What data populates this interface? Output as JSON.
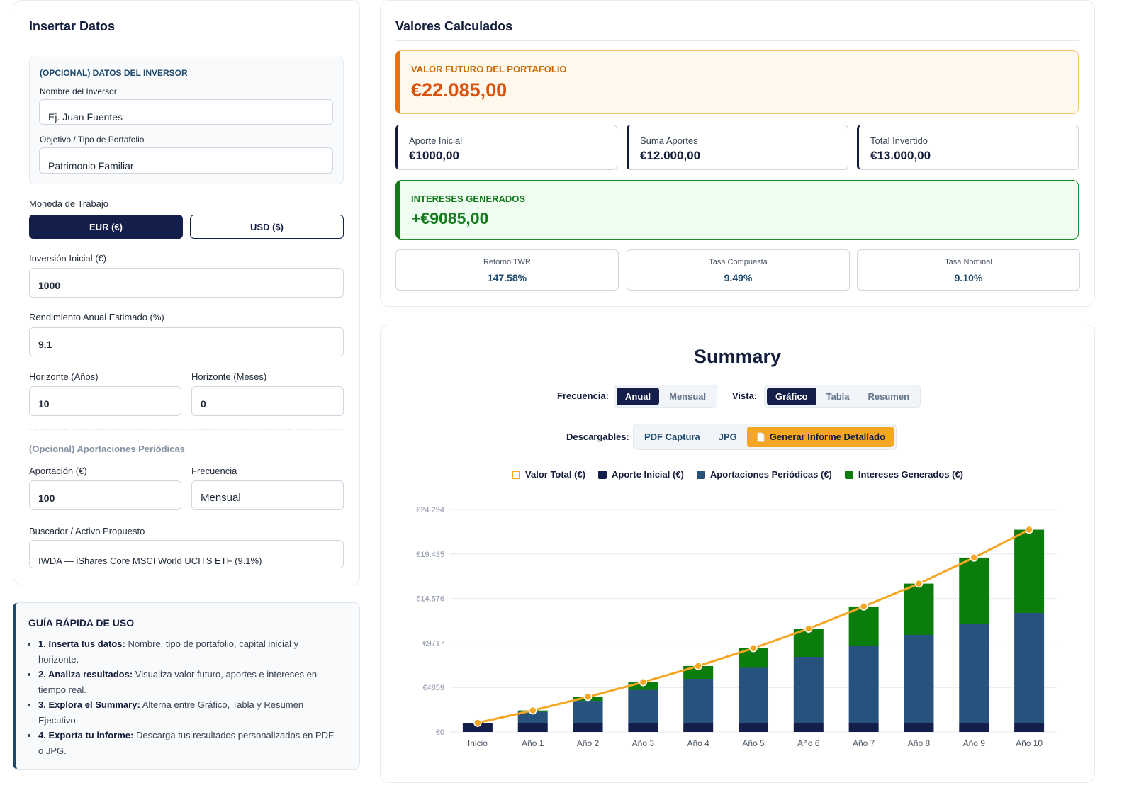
{
  "left": {
    "title": "Insertar Datos",
    "investor": {
      "heading": "(OPCIONAL) DATOS DEL INVERSOR",
      "name_label": "Nombre del Inversor",
      "name_value": "Ej. Juan Fuentes",
      "goal_label": "Objetivo / Tipo de Portafolio",
      "goal_value": "Patrimonio Familiar"
    },
    "currency_label": "Moneda de Trabajo",
    "currency_options": [
      "EUR (€)",
      "USD ($)"
    ],
    "initial_label": "Inversión Inicial (€)",
    "initial_value": "1000",
    "return_label": "Rendimiento Anual Estimado (%)",
    "return_value": "9.1",
    "years_label": "Horizonte (Años)",
    "years_value": "10",
    "months_label": "Horizonte (Meses)",
    "months_value": "0",
    "periodic_heading": "(Opcional) Aportaciones Periódicas",
    "contribution_label": "Aportación (€)",
    "contribution_value": "100",
    "frequency_label": "Frecuencia",
    "frequency_value": "Mensual",
    "search_label": "Buscador / Activo Propuesto",
    "search_value": "IWDA — iShares Core MSCI World UCITS ETF (9.1%)"
  },
  "guide": {
    "title": "GUÍA RÁPIDA DE USO",
    "items": [
      {
        "bold": "1. Inserta tus datos:",
        "text": "Nombre, tipo de portafolio, capital inicial y horizonte."
      },
      {
        "bold": "2. Analiza resultados:",
        "text": "Visualiza valor futuro, aportes e intereses en tiempo real."
      },
      {
        "bold": "3. Explora el Summary:",
        "text": "Alterna entre Gráfico, Tabla y Resumen Ejecutivo."
      },
      {
        "bold": "4. Exporta tu informe:",
        "text": "Descarga tus resultados personalizados en PDF o JPG."
      }
    ]
  },
  "results": {
    "title": "Valores Calculados",
    "future_label": "VALOR FUTURO DEL PORTAFOLIO",
    "future_value": "€22.085,00",
    "cards": [
      {
        "label": "Aporte Inicial",
        "value": "€1000,00"
      },
      {
        "label": "Suma Aportes",
        "value": "€12.000,00"
      },
      {
        "label": "Total Invertido",
        "value": "€13.000,00"
      }
    ],
    "interest_label": "INTERESES GENERADOS",
    "interest_value": "+€9085,00",
    "rates": [
      {
        "label": "Retorno TWR",
        "value": "147.58%"
      },
      {
        "label": "Tasa Compuesta",
        "value": "9.49%"
      },
      {
        "label": "Tasa Nominal",
        "value": "9.10%"
      }
    ]
  },
  "summary": {
    "title": "Summary",
    "freq_label": "Frecuencia:",
    "freq_options": [
      "Anual",
      "Mensual"
    ],
    "view_label": "Vista:",
    "view_options": [
      "Gráfico",
      "Tabla",
      "Resumen"
    ],
    "downloads_label": "Descargables:",
    "download_options": [
      "PDF Captura",
      "JPG",
      "Generar Informe Detallado"
    ]
  },
  "chart_data": {
    "type": "bar",
    "stacked": true,
    "categories": [
      "Inicio",
      "Año 1",
      "Año 2",
      "Año 3",
      "Año 4",
      "Año 5",
      "Año 6",
      "Año 7",
      "Año 8",
      "Año 9",
      "Año 10"
    ],
    "series": [
      {
        "name": "Valor Total (€)",
        "type": "line",
        "color": "#f5a623",
        "values": [
          1000,
          2350,
          3830,
          5440,
          7200,
          9150,
          11280,
          13700,
          16200,
          19040,
          22085
        ]
      },
      {
        "name": "Aporte Inicial (€)",
        "type": "bar",
        "color": "#141e4a",
        "values": [
          1000,
          1000,
          1000,
          1000,
          1000,
          1000,
          1000,
          1000,
          1000,
          1000,
          1000
        ]
      },
      {
        "name": "Aportaciones Periódicas (€)",
        "type": "bar",
        "color": "#27527d",
        "values": [
          0,
          1200,
          2400,
          3600,
          4800,
          6000,
          7200,
          8400,
          9600,
          10800,
          12000
        ]
      },
      {
        "name": "Intereses Generados (€)",
        "type": "bar",
        "color": "#0b7d0b",
        "values": [
          0,
          150,
          430,
          840,
          1400,
          2150,
          3080,
          4300,
          5600,
          7240,
          9085
        ]
      }
    ],
    "ylim": [
      0,
      24294
    ],
    "yticks": [
      {
        "value": 0,
        "label": "€0"
      },
      {
        "value": 4859,
        "label": "€4859"
      },
      {
        "value": 9717,
        "label": "€9717"
      },
      {
        "value": 14576,
        "label": "€14.576"
      },
      {
        "value": 19435,
        "label": "€19.435"
      },
      {
        "value": 24294,
        "label": "€24.294"
      }
    ],
    "grid": true
  }
}
